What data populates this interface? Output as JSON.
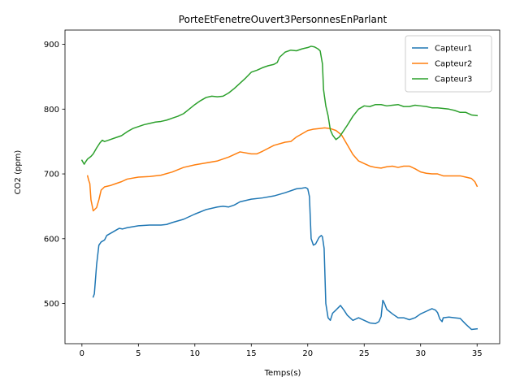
{
  "chart_data": {
    "type": "line",
    "title": "PorteEtFenetreOuvert3PersonnesEnParlant",
    "xlabel": "Temps(s)",
    "ylabel": "CO2 (ppm)",
    "xlim": [
      -1.5,
      37
    ],
    "ylim": [
      438,
      922
    ],
    "xticks": [
      0,
      5,
      10,
      15,
      20,
      25,
      30,
      35
    ],
    "yticks": [
      500,
      600,
      700,
      800,
      900
    ],
    "grid": false,
    "legend_position": "top-right",
    "series": [
      {
        "name": "Capteur1",
        "color": "#1f77b4",
        "points": [
          [
            1.0,
            510
          ],
          [
            1.1,
            515
          ],
          [
            1.3,
            560
          ],
          [
            1.5,
            590
          ],
          [
            1.7,
            595
          ],
          [
            2.0,
            598
          ],
          [
            2.2,
            605
          ],
          [
            2.5,
            608
          ],
          [
            3.0,
            613
          ],
          [
            3.3,
            616
          ],
          [
            3.6,
            615
          ],
          [
            4.0,
            617
          ],
          [
            5.0,
            620
          ],
          [
            6.0,
            621
          ],
          [
            7.0,
            621
          ],
          [
            7.5,
            622
          ],
          [
            8.0,
            625
          ],
          [
            9.0,
            630
          ],
          [
            10.0,
            638
          ],
          [
            11.0,
            645
          ],
          [
            12.0,
            649
          ],
          [
            12.5,
            650
          ],
          [
            13.0,
            649
          ],
          [
            13.5,
            652
          ],
          [
            14.0,
            657
          ],
          [
            15.0,
            661
          ],
          [
            16.0,
            663
          ],
          [
            17.0,
            666
          ],
          [
            18.0,
            671
          ],
          [
            19.0,
            677
          ],
          [
            19.5,
            678
          ],
          [
            19.8,
            679
          ],
          [
            20.0,
            677
          ],
          [
            20.15,
            665
          ],
          [
            20.3,
            600
          ],
          [
            20.5,
            590
          ],
          [
            20.7,
            592
          ],
          [
            21.0,
            602
          ],
          [
            21.2,
            605
          ],
          [
            21.3,
            603
          ],
          [
            21.45,
            585
          ],
          [
            21.6,
            500
          ],
          [
            21.8,
            478
          ],
          [
            22.0,
            474
          ],
          [
            22.2,
            485
          ],
          [
            22.5,
            490
          ],
          [
            22.9,
            497
          ],
          [
            23.2,
            490
          ],
          [
            23.5,
            482
          ],
          [
            24.0,
            474
          ],
          [
            24.5,
            478
          ],
          [
            25.0,
            474
          ],
          [
            25.5,
            470
          ],
          [
            26.0,
            469
          ],
          [
            26.3,
            472
          ],
          [
            26.5,
            480
          ],
          [
            26.65,
            505
          ],
          [
            26.8,
            500
          ],
          [
            27.0,
            491
          ],
          [
            27.5,
            484
          ],
          [
            28.0,
            478
          ],
          [
            28.5,
            478
          ],
          [
            29.0,
            475
          ],
          [
            29.5,
            478
          ],
          [
            30.0,
            484
          ],
          [
            30.5,
            488
          ],
          [
            31.0,
            492
          ],
          [
            31.3,
            490
          ],
          [
            31.5,
            486
          ],
          [
            31.7,
            476
          ],
          [
            31.9,
            472
          ],
          [
            32.0,
            478
          ],
          [
            32.5,
            479
          ],
          [
            33.0,
            478
          ],
          [
            33.5,
            477
          ],
          [
            34.0,
            468
          ],
          [
            34.5,
            460
          ],
          [
            35.0,
            461
          ]
        ]
      },
      {
        "name": "Capteur2",
        "color": "#ff7f0e",
        "points": [
          [
            0.5,
            697
          ],
          [
            0.6,
            690
          ],
          [
            0.7,
            685
          ],
          [
            0.8,
            660
          ],
          [
            1.0,
            643
          ],
          [
            1.3,
            648
          ],
          [
            1.5,
            660
          ],
          [
            1.7,
            675
          ],
          [
            2.0,
            680
          ],
          [
            2.5,
            682
          ],
          [
            3.0,
            685
          ],
          [
            3.5,
            688
          ],
          [
            4.0,
            692
          ],
          [
            5.0,
            695
          ],
          [
            6.0,
            696
          ],
          [
            7.0,
            698
          ],
          [
            8.0,
            703
          ],
          [
            9.0,
            710
          ],
          [
            10.0,
            714
          ],
          [
            11.0,
            717
          ],
          [
            12.0,
            720
          ],
          [
            13.0,
            726
          ],
          [
            14.0,
            734
          ],
          [
            15.0,
            731
          ],
          [
            15.5,
            731
          ],
          [
            16.0,
            735
          ],
          [
            17.0,
            744
          ],
          [
            18.0,
            749
          ],
          [
            18.5,
            750
          ],
          [
            19.0,
            757
          ],
          [
            19.5,
            762
          ],
          [
            20.0,
            767
          ],
          [
            20.5,
            769
          ],
          [
            21.0,
            770
          ],
          [
            21.5,
            771
          ],
          [
            22.0,
            770
          ],
          [
            22.5,
            767
          ],
          [
            23.0,
            760
          ],
          [
            23.5,
            745
          ],
          [
            24.0,
            730
          ],
          [
            24.5,
            720
          ],
          [
            25.0,
            716
          ],
          [
            25.5,
            712
          ],
          [
            26.0,
            710
          ],
          [
            26.5,
            709
          ],
          [
            27.0,
            711
          ],
          [
            27.5,
            712
          ],
          [
            28.0,
            710
          ],
          [
            28.5,
            712
          ],
          [
            29.0,
            712
          ],
          [
            29.5,
            708
          ],
          [
            30.0,
            703
          ],
          [
            30.5,
            701
          ],
          [
            31.0,
            700
          ],
          [
            31.5,
            700
          ],
          [
            32.0,
            697
          ],
          [
            32.5,
            697
          ],
          [
            33.0,
            697
          ],
          [
            33.5,
            697
          ],
          [
            34.0,
            695
          ],
          [
            34.5,
            693
          ],
          [
            34.8,
            688
          ],
          [
            35.0,
            681
          ]
        ]
      },
      {
        "name": "Capteur3",
        "color": "#2ca02c",
        "points": [
          [
            0.0,
            721
          ],
          [
            0.2,
            715
          ],
          [
            0.3,
            718
          ],
          [
            0.5,
            723
          ],
          [
            0.8,
            727
          ],
          [
            1.0,
            731
          ],
          [
            1.3,
            740
          ],
          [
            1.6,
            748
          ],
          [
            1.8,
            752
          ],
          [
            2.0,
            750
          ],
          [
            2.5,
            753
          ],
          [
            3.0,
            756
          ],
          [
            3.5,
            759
          ],
          [
            4.0,
            765
          ],
          [
            4.5,
            770
          ],
          [
            5.0,
            773
          ],
          [
            5.5,
            776
          ],
          [
            6.0,
            778
          ],
          [
            6.5,
            780
          ],
          [
            7.0,
            781
          ],
          [
            7.5,
            783
          ],
          [
            8.0,
            786
          ],
          [
            8.5,
            789
          ],
          [
            9.0,
            793
          ],
          [
            9.5,
            800
          ],
          [
            10.0,
            807
          ],
          [
            10.5,
            813
          ],
          [
            11.0,
            818
          ],
          [
            11.5,
            820
          ],
          [
            12.0,
            819
          ],
          [
            12.5,
            820
          ],
          [
            13.0,
            825
          ],
          [
            13.5,
            832
          ],
          [
            14.0,
            840
          ],
          [
            14.5,
            848
          ],
          [
            15.0,
            857
          ],
          [
            15.5,
            860
          ],
          [
            16.0,
            864
          ],
          [
            16.5,
            867
          ],
          [
            17.0,
            869
          ],
          [
            17.3,
            872
          ],
          [
            17.5,
            880
          ],
          [
            18.0,
            888
          ],
          [
            18.5,
            891
          ],
          [
            19.0,
            890
          ],
          [
            19.5,
            893
          ],
          [
            20.0,
            895
          ],
          [
            20.3,
            897
          ],
          [
            20.6,
            896
          ],
          [
            20.9,
            893
          ],
          [
            21.1,
            890
          ],
          [
            21.3,
            870
          ],
          [
            21.4,
            830
          ],
          [
            21.6,
            805
          ],
          [
            21.8,
            790
          ],
          [
            22.0,
            768
          ],
          [
            22.2,
            760
          ],
          [
            22.5,
            753
          ],
          [
            22.8,
            757
          ],
          [
            23.0,
            762
          ],
          [
            23.5,
            775
          ],
          [
            24.0,
            789
          ],
          [
            24.5,
            800
          ],
          [
            25.0,
            805
          ],
          [
            25.5,
            804
          ],
          [
            26.0,
            807
          ],
          [
            26.5,
            807
          ],
          [
            27.0,
            805
          ],
          [
            27.5,
            806
          ],
          [
            28.0,
            807
          ],
          [
            28.5,
            804
          ],
          [
            29.0,
            804
          ],
          [
            29.5,
            806
          ],
          [
            30.0,
            805
          ],
          [
            30.5,
            804
          ],
          [
            31.0,
            802
          ],
          [
            31.5,
            802
          ],
          [
            32.0,
            801
          ],
          [
            32.5,
            800
          ],
          [
            33.0,
            798
          ],
          [
            33.5,
            795
          ],
          [
            34.0,
            795
          ],
          [
            34.5,
            791
          ],
          [
            35.0,
            790
          ]
        ]
      }
    ]
  }
}
